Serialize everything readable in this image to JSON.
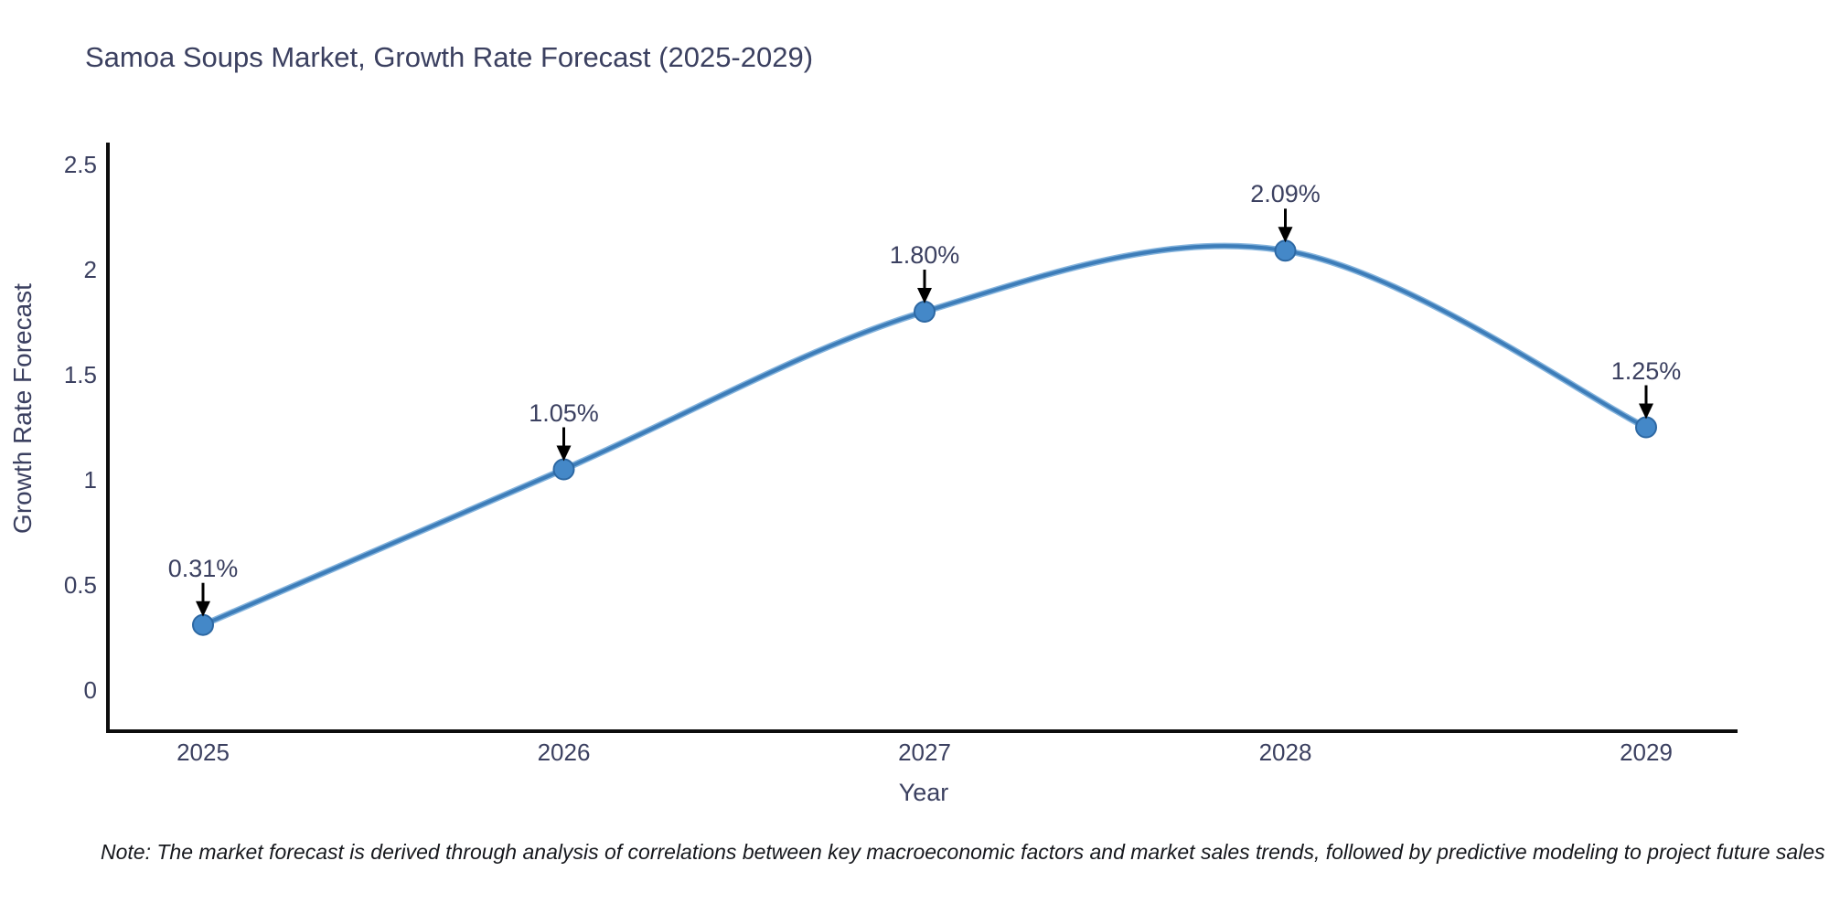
{
  "page": {
    "background": "#ffffff"
  },
  "chart": {
    "note": "Note: The market forecast is derived through analysis of correlations between key macroeconomic factors and market sales trends, followed by predictive modeling to project future sales",
    "colors": {
      "line": "#3d7db9",
      "line_highlight": "#85b4dd",
      "marker_fill": "#4488c8",
      "marker_edge": "#2d68a3",
      "axis": "#0d0d0d",
      "text": "#3b4060",
      "arrow": "#000000",
      "note_text": "#16181d"
    }
  },
  "chart_data": {
    "type": "line",
    "title": "Samoa Soups Market, Growth Rate Forecast (2025-2029)",
    "xlabel": "Year",
    "ylabel": "Growth Rate Forecast",
    "x": [
      2025,
      2026,
      2027,
      2028,
      2029
    ],
    "series": [
      {
        "name": "Growth Rate Forecast",
        "values": [
          0.31,
          1.05,
          1.8,
          2.09,
          1.25
        ]
      }
    ],
    "point_labels": [
      "0.31%",
      "1.05%",
      "1.80%",
      "2.09%",
      "1.25%"
    ],
    "xtick_labels": [
      "2025",
      "2026",
      "2027",
      "2028",
      "2029"
    ],
    "yticks": [
      0,
      0.5,
      1,
      1.5,
      2,
      2.5
    ],
    "ytick_labels": [
      "0",
      "0.5",
      "1",
      "1.5",
      "2",
      "2.5"
    ],
    "ylim": [
      -0.2,
      2.6
    ],
    "grid": false,
    "legend": "none",
    "marker": "circle",
    "smooth": true,
    "annotations": "value labels with downward arrows above each point"
  }
}
